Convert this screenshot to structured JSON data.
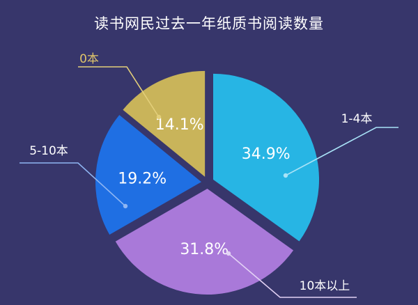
{
  "chart_data": {
    "type": "pie",
    "title": "读书网民过去一年纸质书阅读数量",
    "categories": [
      "1-4本",
      "10本以上",
      "5-10本",
      "0本"
    ],
    "values": [
      34.9,
      31.8,
      19.2,
      14.1
    ],
    "value_labels": [
      "34.9%",
      "31.8%",
      "19.2%",
      "14.1%"
    ],
    "colors": [
      "#27b5e4",
      "#a979d9",
      "#1f6fe3",
      "#c9b45a"
    ],
    "leader_colors": [
      "#a9e3f7",
      "#e3d2f5",
      "#8fb6f3",
      "#e3cf7a"
    ],
    "category_label_colors": [
      "#ffffff",
      "#ffffff",
      "#ffffff",
      "#e0c56a"
    ],
    "legend": "none",
    "exploded": true
  },
  "background_color": "#37366b"
}
